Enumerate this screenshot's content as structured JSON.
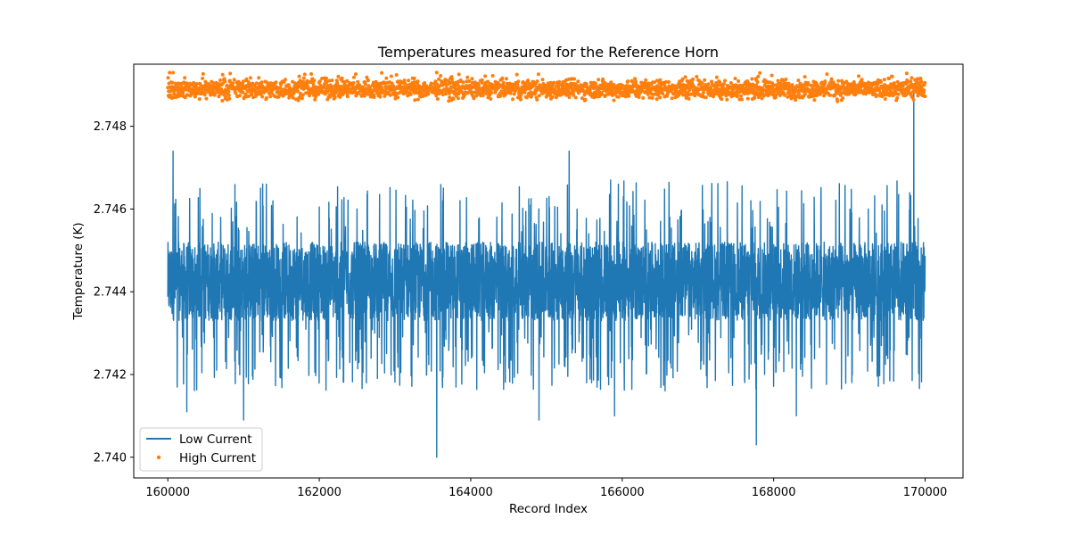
{
  "chart_data": {
    "type": "line",
    "title": "Temperatures measured for the Reference Horn",
    "xlabel": "Record Index",
    "ylabel": "Temperature (K)",
    "xlim": [
      159550,
      170500
    ],
    "ylim": [
      2.7395,
      2.7495
    ],
    "x_ticks": [
      160000,
      162000,
      164000,
      166000,
      168000,
      170000
    ],
    "x_tick_labels": [
      "160000",
      "162000",
      "164000",
      "166000",
      "168000",
      "170000"
    ],
    "y_ticks": [
      2.74,
      2.742,
      2.744,
      2.746,
      2.748
    ],
    "y_tick_labels": [
      "2.740",
      "2.742",
      "2.744",
      "2.746",
      "2.748"
    ],
    "grid": false,
    "legend_position": "lower-left",
    "series": [
      {
        "name": "Low Current",
        "style": "line",
        "color": "#1f77b4",
        "x_range": [
          160000,
          170000
        ],
        "band": [
          2.7433,
          2.7452
        ],
        "typical_mean": 2.7443,
        "peak": {
          "x": 169850,
          "y": 2.7488
        },
        "minimum": {
          "x": 163550,
          "y": 2.74
        },
        "notable_spikes": [
          {
            "x": 160070,
            "y": 2.7474
          },
          {
            "x": 161300,
            "y": 2.7466
          },
          {
            "x": 163630,
            "y": 2.7462
          },
          {
            "x": 165300,
            "y": 2.7474
          },
          {
            "x": 165950,
            "y": 2.7466
          },
          {
            "x": 167700,
            "y": 2.7462
          },
          {
            "x": 169250,
            "y": 2.746
          }
        ],
        "notable_dips": [
          {
            "x": 160250,
            "y": 2.7411
          },
          {
            "x": 161000,
            "y": 2.7409
          },
          {
            "x": 163550,
            "y": 2.74
          },
          {
            "x": 164900,
            "y": 2.7409
          },
          {
            "x": 165900,
            "y": 2.741
          },
          {
            "x": 167770,
            "y": 2.7403
          },
          {
            "x": 168300,
            "y": 2.741
          }
        ]
      },
      {
        "name": "High Current",
        "style": "scatter",
        "color": "#ff7f0e",
        "x_range": [
          160000,
          170000
        ],
        "band": [
          2.7486,
          2.7493
        ],
        "typical_mean": 2.7489,
        "maximum": 2.74935,
        "minimum": 2.74855
      }
    ]
  }
}
